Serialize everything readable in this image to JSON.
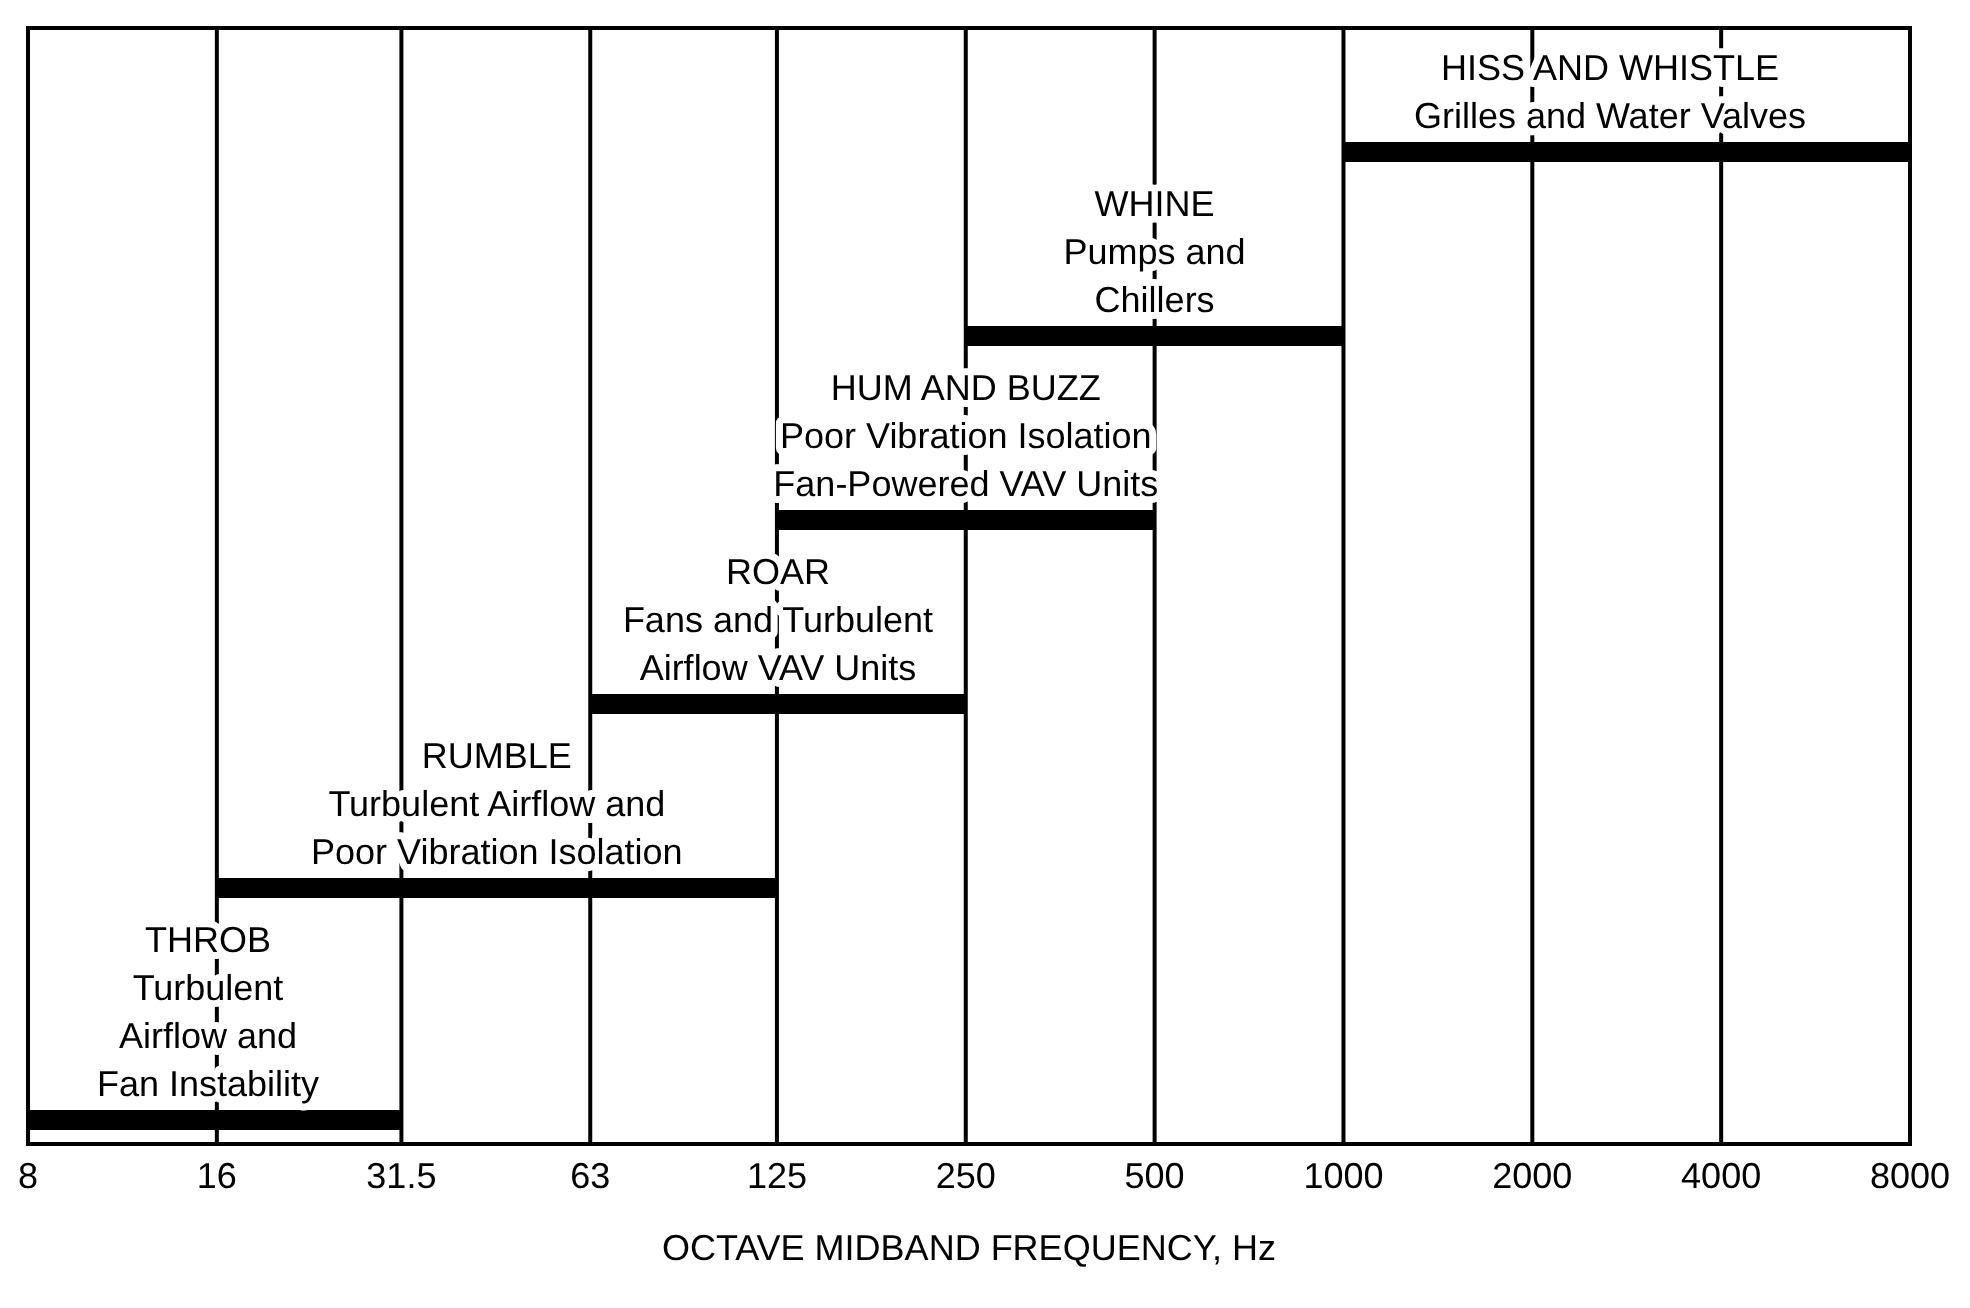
{
  "chart_data": {
    "type": "bar",
    "orientation": "horizontal",
    "xlabel": "OCTAVE MIDBAND FREQUENCY, Hz",
    "categories": [
      "HISS AND WHISTLE\nGrilles and Water Valves",
      "WHINE\nPumps and\nChillers",
      "HUM AND BUZZ\nPoor Vibration Isolation\nFan-Powered VAV Units",
      "ROAR\nFans and Turbulent\nAirflow VAV Units",
      "RUMBLE\nTurbulent Airflow and\nPoor Vibration Isolation",
      "THROB\nTurbulent\nAirflow and\nFan Instability"
    ],
    "base": [
      1000,
      250,
      125,
      63,
      16,
      8
    ],
    "values": [
      7000,
      750,
      375,
      187,
      109,
      23.5
    ],
    "color": "#000000",
    "xlim": [
      8,
      8000
    ],
    "xticks": [
      8,
      16,
      31.5,
      63,
      125,
      250,
      500,
      1000,
      2000,
      4000,
      8000
    ],
    "log": "x",
    "grid": "x",
    "tick_labels": "x"
  }
}
